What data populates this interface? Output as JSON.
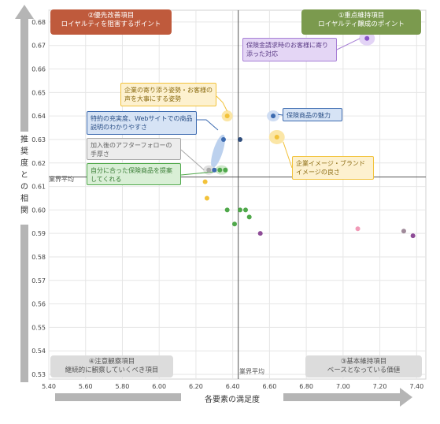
{
  "colors": {
    "arrow": "#b5b5b5",
    "grid": "#e6e6e6",
    "avg_line": "#555555",
    "q1_bg": "#7b9a4e",
    "q2_bg": "#bf5a3c",
    "q3_bg": "#dcdcdc",
    "q4_bg": "#dcdcdc",
    "purple": "#a77fd6",
    "yellow": "#f2c23a",
    "blue": "#3d6bb0",
    "gray": "#a8a8a8",
    "green": "#4fa84a",
    "pink": "#f19ab7",
    "navy": "#2f4d7c"
  },
  "quadrants": {
    "q1": {
      "title": "①重点維持項目",
      "subtitle": "ロイヤルティ醸成のポイント"
    },
    "q2": {
      "title": "②優先改善項目",
      "subtitle": "ロイヤルティを阻害するポイント"
    },
    "q3": {
      "title": "③基本維持項目",
      "subtitle": "ベースとなっている価値"
    },
    "q4": {
      "title": "④注意観察項目",
      "subtitle": "継続的に観察していくべき項目"
    }
  },
  "notes": {
    "purple": "保険金請求時のお客様に寄り添った対応",
    "yellow_top": "企業の寄り添う姿勢・お客様の声を大事にする姿勢",
    "blue_left": "特約の充実度、Webサイトでの商品説明のわかりやすさ",
    "gray": "加入後のアフターフォローの手厚さ",
    "green": "自分に合った保険商品を提案してくれる",
    "blue_right": "保険商品の魅力",
    "yellow_right": "企業イメージ・ブランドイメージの良さ"
  },
  "avg_labels": {
    "horizontal": "業界平均",
    "vertical": "業界平均"
  },
  "chart_data": {
    "type": "scatter",
    "xlabel": "各要素の満足度",
    "ylabel": "推奨度との相関",
    "xlim": [
      5.4,
      7.45
    ],
    "ylim": [
      0.528,
      0.685
    ],
    "x_ticks": [
      "5.40",
      "5.60",
      "5.80",
      "6.00",
      "6.20",
      "6.40",
      "6.60",
      "6.80",
      "7.00",
      "7.20",
      "7.40"
    ],
    "y_ticks": [
      "0.53",
      "0.54",
      "0.55",
      "0.56",
      "0.57",
      "0.58",
      "0.59",
      "0.60",
      "0.61",
      "0.62",
      "0.63",
      "0.64",
      "0.65",
      "0.66",
      "0.67",
      "0.68"
    ],
    "grid": "both",
    "industry_average": {
      "x": 6.43,
      "y": 0.614
    },
    "points": [
      {
        "x": 7.13,
        "y": 0.673,
        "group": "purple"
      },
      {
        "x": 6.37,
        "y": 0.64,
        "group": "yellow"
      },
      {
        "x": 6.64,
        "y": 0.631,
        "group": "yellow"
      },
      {
        "x": 6.25,
        "y": 0.612,
        "group": "yellow"
      },
      {
        "x": 6.26,
        "y": 0.605,
        "group": "yellow"
      },
      {
        "x": 6.62,
        "y": 0.64,
        "group": "blue"
      },
      {
        "x": 6.35,
        "y": 0.63,
        "group": "blue"
      },
      {
        "x": 6.3,
        "y": 0.617,
        "group": "blue"
      },
      {
        "x": 6.44,
        "y": 0.63,
        "group": "navy"
      },
      {
        "x": 6.27,
        "y": 0.617,
        "group": "gray"
      },
      {
        "x": 6.33,
        "y": 0.617,
        "group": "green"
      },
      {
        "x": 6.36,
        "y": 0.617,
        "group": "green"
      },
      {
        "x": 6.37,
        "y": 0.6,
        "group": "green"
      },
      {
        "x": 6.44,
        "y": 0.6,
        "group": "green"
      },
      {
        "x": 6.47,
        "y": 0.6,
        "group": "green"
      },
      {
        "x": 6.49,
        "y": 0.597,
        "group": "green"
      },
      {
        "x": 6.41,
        "y": 0.594,
        "group": "green"
      },
      {
        "x": 6.55,
        "y": 0.59,
        "group": "purple_dark"
      },
      {
        "x": 7.08,
        "y": 0.592,
        "group": "pink"
      },
      {
        "x": 7.33,
        "y": 0.591,
        "group": "mauve"
      },
      {
        "x": 7.38,
        "y": 0.589,
        "group": "purple_dark"
      }
    ]
  }
}
